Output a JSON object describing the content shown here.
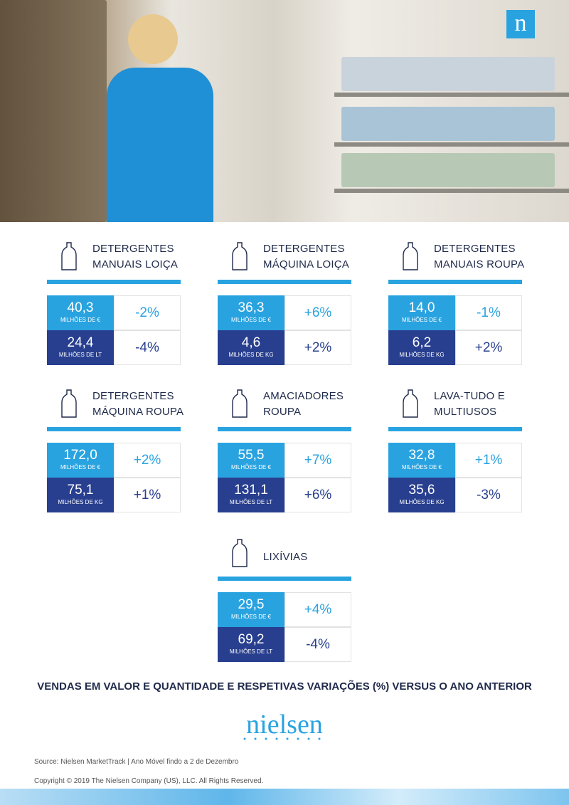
{
  "header": {
    "logo": "n"
  },
  "cards": [
    {
      "title": [
        "DETERGENTES",
        "MANUAIS LOIÇA"
      ],
      "rows": [
        {
          "value": "40,3",
          "unit": "MILHÕES DE €",
          "change": "-2%"
        },
        {
          "value": "24,4",
          "unit": "MILHÕES DE LT",
          "change": "-4%"
        }
      ]
    },
    {
      "title": [
        "DETERGENTES",
        "MÁQUINA LOIÇA"
      ],
      "rows": [
        {
          "value": "36,3",
          "unit": "MILHÕES DE €",
          "change": "+6%"
        },
        {
          "value": "4,6",
          "unit": "MILHÕES DE KG",
          "change": "+2%"
        }
      ]
    },
    {
      "title": [
        "DETERGENTES",
        "MANUAIS ROUPA"
      ],
      "rows": [
        {
          "value": "14,0",
          "unit": "MILHÕES DE €",
          "change": "-1%"
        },
        {
          "value": "6,2",
          "unit": "MILHÕES DE KG",
          "change": "+2%"
        }
      ]
    },
    {
      "title": [
        "DETERGENTES",
        "MÁQUINA ROUPA"
      ],
      "rows": [
        {
          "value": "172,0",
          "unit": "MILHÕES DE €",
          "change": "+2%"
        },
        {
          "value": "75,1",
          "unit": "MILHÕES DE KG",
          "change": "+1%"
        }
      ]
    },
    {
      "title": [
        "AMACIADORES",
        "ROUPA"
      ],
      "rows": [
        {
          "value": "55,5",
          "unit": "MILHÕES DE €",
          "change": "+7%"
        },
        {
          "value": "131,1",
          "unit": "MILHÕES DE LT",
          "change": "+6%"
        }
      ]
    },
    {
      "title": [
        "LAVA-TUDO E",
        "MULTIUSOS"
      ],
      "rows": [
        {
          "value": "32,8",
          "unit": "MILHÕES DE €",
          "change": "+1%"
        },
        {
          "value": "35,6",
          "unit": "MILHÕES DE KG",
          "change": "-3%"
        }
      ]
    },
    {
      "title": [
        "LIXÍVIAS"
      ],
      "rows": [
        {
          "value": "29,5",
          "unit": "MILHÕES DE €",
          "change": "+4%"
        },
        {
          "value": "69,2",
          "unit": "MILHÕES DE LT",
          "change": "-4%"
        }
      ]
    }
  ],
  "caption": "VENDAS EM VALOR E QUANTIDADE E RESPETIVAS VARIAÇÕES (%) VERSUS O ANO ANTERIOR",
  "brand": "nielsen",
  "source": "Source: Nielsen MarketTrack | Ano Móvel findo a 2 de Dezembro",
  "copyright": "Copyright © 2019 The Nielsen Company (US), LLC. All Rights Reserved."
}
